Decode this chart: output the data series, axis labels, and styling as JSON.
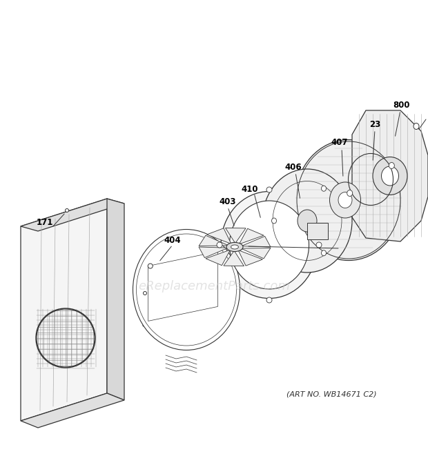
{
  "bg_color": "#ffffff",
  "line_color": "#333333",
  "label_color": "#000000",
  "watermark_text": "eReplacementParts.com",
  "watermark_color": "#cccccc",
  "art_no_text": "(ART NO. WB14671 C2)",
  "label_fontsize": 8.5
}
